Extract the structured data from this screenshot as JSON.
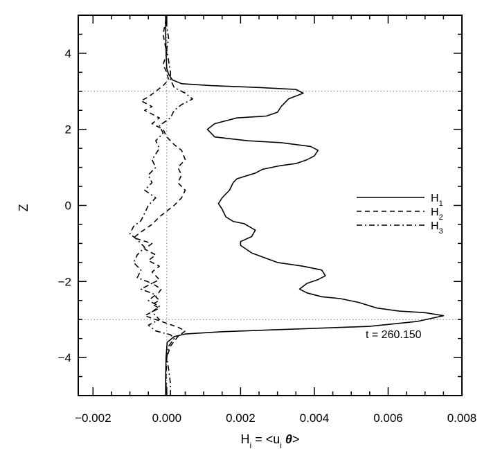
{
  "chart_data": {
    "type": "line",
    "xlabel": {
      "main": "H",
      "sub_main": "i",
      "eq": " = <u",
      "sub_u": "i",
      "theta": " θ",
      "close": ">"
    },
    "ylabel": "Z",
    "xlim": [
      -0.0024,
      0.008
    ],
    "ylim": [
      -5,
      5
    ],
    "xticks": [
      -0.002,
      0.0,
      0.002,
      0.004,
      0.006,
      0.008
    ],
    "xtick_labels": [
      "−0.002",
      "0.000",
      "0.002",
      "0.004",
      "0.006",
      "0.008"
    ],
    "yticks": [
      -4,
      -2,
      0,
      2,
      4
    ],
    "ytick_labels": [
      "−4",
      "−2",
      "0",
      "2",
      "4"
    ],
    "reference_lines": {
      "vertical_x": [
        0.0
      ],
      "horizontal_y": [
        3.0,
        -3.0
      ],
      "style": "dotted"
    },
    "annotation": "t = 260.150",
    "legend": {
      "placement": "right"
    },
    "series": [
      {
        "name": "H",
        "sub": "1",
        "dash": "solid",
        "points": [
          [
            -3e-05,
            -5.0
          ],
          [
            -3e-05,
            -4.5
          ],
          [
            -2e-05,
            -4.0
          ],
          [
            1e-05,
            -3.6
          ],
          [
            0.0002,
            -3.45
          ],
          [
            0.0005,
            -3.38
          ],
          [
            0.0015,
            -3.32
          ],
          [
            0.0035,
            -3.25
          ],
          [
            0.0055,
            -3.18
          ],
          [
            0.0068,
            -3.05
          ],
          [
            0.0075,
            -2.9
          ],
          [
            0.007,
            -2.82
          ],
          [
            0.0063,
            -2.78
          ],
          [
            0.0057,
            -2.7
          ],
          [
            0.0052,
            -2.55
          ],
          [
            0.0047,
            -2.45
          ],
          [
            0.0042,
            -2.4
          ],
          [
            0.0038,
            -2.3
          ],
          [
            0.0036,
            -2.2
          ],
          [
            0.0038,
            -2.05
          ],
          [
            0.0041,
            -1.95
          ],
          [
            0.0043,
            -1.85
          ],
          [
            0.0042,
            -1.7
          ],
          [
            0.0037,
            -1.6
          ],
          [
            0.003,
            -1.5
          ],
          [
            0.0023,
            -1.25
          ],
          [
            0.002,
            -1.05
          ],
          [
            0.002,
            -0.95
          ],
          [
            0.0023,
            -0.82
          ],
          [
            0.0024,
            -0.65
          ],
          [
            0.0021,
            -0.48
          ],
          [
            0.0018,
            -0.42
          ],
          [
            0.0016,
            -0.3
          ],
          [
            0.0015,
            -0.1
          ],
          [
            0.0014,
            0.05
          ],
          [
            0.0015,
            0.2
          ],
          [
            0.0017,
            0.4
          ],
          [
            0.0018,
            0.6
          ],
          [
            0.0019,
            0.7
          ],
          [
            0.0024,
            0.85
          ],
          [
            0.0026,
            0.95
          ],
          [
            0.0031,
            1.05
          ],
          [
            0.0035,
            1.1
          ],
          [
            0.0038,
            1.2
          ],
          [
            0.004,
            1.3
          ],
          [
            0.0041,
            1.45
          ],
          [
            0.0039,
            1.55
          ],
          [
            0.0031,
            1.65
          ],
          [
            0.0022,
            1.7
          ],
          [
            0.0013,
            1.8
          ],
          [
            0.0011,
            2.0
          ],
          [
            0.0013,
            2.15
          ],
          [
            0.0019,
            2.3
          ],
          [
            0.0027,
            2.35
          ],
          [
            0.003,
            2.45
          ],
          [
            0.0031,
            2.6
          ],
          [
            0.0033,
            2.8
          ],
          [
            0.0037,
            2.95
          ],
          [
            0.0035,
            3.05
          ],
          [
            0.0025,
            3.1
          ],
          [
            0.0012,
            3.15
          ],
          [
            0.0004,
            3.2
          ],
          [
            0.00015,
            3.3
          ],
          [
            5e-05,
            3.45
          ],
          [
            0.0,
            3.6
          ],
          [
            -2e-05,
            4.0
          ],
          [
            -3e-05,
            4.5
          ],
          [
            -3e-05,
            5.0
          ]
        ]
      },
      {
        "name": "H",
        "sub": "2",
        "dash": "dashed",
        "points": [
          [
            -2e-05,
            -5.0
          ],
          [
            -2e-05,
            -4.5
          ],
          [
            0.0,
            -4.0
          ],
          [
            0.0001,
            -3.7
          ],
          [
            0.0003,
            -3.45
          ],
          [
            0.0005,
            -3.3
          ],
          [
            0.0003,
            -3.2
          ],
          [
            0.0,
            -3.1
          ],
          [
            -0.0003,
            -3.0
          ],
          [
            -0.0006,
            -2.9
          ],
          [
            -0.0004,
            -2.8
          ],
          [
            -0.0002,
            -2.7
          ],
          [
            -0.0004,
            -2.6
          ],
          [
            -0.0002,
            -2.5
          ],
          [
            -0.0003,
            -2.4
          ],
          [
            -0.00015,
            -2.2
          ],
          [
            -0.0004,
            -2.05
          ],
          [
            -0.0002,
            -1.95
          ],
          [
            -0.0004,
            -1.75
          ],
          [
            -0.0002,
            -1.6
          ],
          [
            -0.0005,
            -1.45
          ],
          [
            -0.0003,
            -1.3
          ],
          [
            -0.0006,
            -1.15
          ],
          [
            -0.0004,
            -1.0
          ],
          [
            -0.0009,
            -0.85
          ],
          [
            -0.0007,
            -0.7
          ],
          [
            -0.0004,
            -0.5
          ],
          [
            -0.0002,
            -0.3
          ],
          [
            0.0,
            -0.15
          ],
          [
            0.0002,
            0.0
          ],
          [
            0.0004,
            0.2
          ],
          [
            0.0005,
            0.4
          ],
          [
            0.0003,
            0.6
          ],
          [
            0.0004,
            0.8
          ],
          [
            0.0003,
            1.0
          ],
          [
            0.0005,
            1.2
          ],
          [
            0.0004,
            1.45
          ],
          [
            0.0002,
            1.6
          ],
          [
            0.0,
            1.8
          ],
          [
            -0.0001,
            2.0
          ],
          [
            -0.0004,
            2.15
          ],
          [
            -0.0002,
            2.3
          ],
          [
            -0.0004,
            2.4
          ],
          [
            -0.0006,
            2.5
          ],
          [
            -0.0004,
            2.6
          ],
          [
            -0.0007,
            2.75
          ],
          [
            -0.0005,
            2.85
          ],
          [
            -0.0003,
            3.0
          ],
          [
            -0.0001,
            3.15
          ],
          [
            5e-05,
            3.3
          ],
          [
            0.0,
            3.5
          ],
          [
            -0.0001,
            3.7
          ],
          [
            0.0,
            4.0
          ],
          [
            -0.0001,
            4.5
          ],
          [
            0.0,
            5.0
          ]
        ]
      },
      {
        "name": "H",
        "sub": "3",
        "dash": "dashdot",
        "points": [
          [
            0.0001,
            -5.0
          ],
          [
            0.0001,
            -4.7
          ],
          [
            5e-05,
            -4.3
          ],
          [
            0.0,
            -4.0
          ],
          [
            5e-05,
            -3.7
          ],
          [
            0.0002,
            -3.5
          ],
          [
            0.0001,
            -3.4
          ],
          [
            -0.0003,
            -3.3
          ],
          [
            -0.0005,
            -3.15
          ],
          [
            -0.0002,
            -3.0
          ],
          [
            -0.0004,
            -2.8
          ],
          [
            -0.0002,
            -2.65
          ],
          [
            -0.0005,
            -2.5
          ],
          [
            -0.0003,
            -2.35
          ],
          [
            -0.0007,
            -2.2
          ],
          [
            -0.0004,
            -2.05
          ],
          [
            -0.0008,
            -1.9
          ],
          [
            -0.0007,
            -1.7
          ],
          [
            -0.0009,
            -1.5
          ],
          [
            -0.0008,
            -1.3
          ],
          [
            -0.0006,
            -1.1
          ],
          [
            -0.0008,
            -0.9
          ],
          [
            -0.001,
            -0.75
          ],
          [
            -0.0009,
            -0.55
          ],
          [
            -0.0007,
            -0.4
          ],
          [
            -0.0006,
            -0.2
          ],
          [
            -0.0005,
            0.0
          ],
          [
            -0.0003,
            0.2
          ],
          [
            -0.0006,
            0.4
          ],
          [
            -0.0004,
            0.6
          ],
          [
            -0.0005,
            0.8
          ],
          [
            -0.0003,
            1.0
          ],
          [
            -0.0004,
            1.2
          ],
          [
            -0.0002,
            1.5
          ],
          [
            -0.0003,
            1.7
          ],
          [
            -0.0001,
            1.9
          ],
          [
            -0.0002,
            2.1
          ],
          [
            0.0001,
            2.3
          ],
          [
            0.0002,
            2.5
          ],
          [
            0.0004,
            2.65
          ],
          [
            0.0007,
            2.8
          ],
          [
            0.0005,
            2.95
          ],
          [
            0.0002,
            3.1
          ],
          [
            0.0001,
            3.3
          ],
          [
            0.0001,
            3.5
          ],
          [
            5e-05,
            3.8
          ],
          [
            0.0,
            4.1
          ],
          [
            5e-05,
            4.4
          ],
          [
            0.0,
            4.7
          ],
          [
            0.0,
            5.0
          ]
        ]
      }
    ]
  }
}
